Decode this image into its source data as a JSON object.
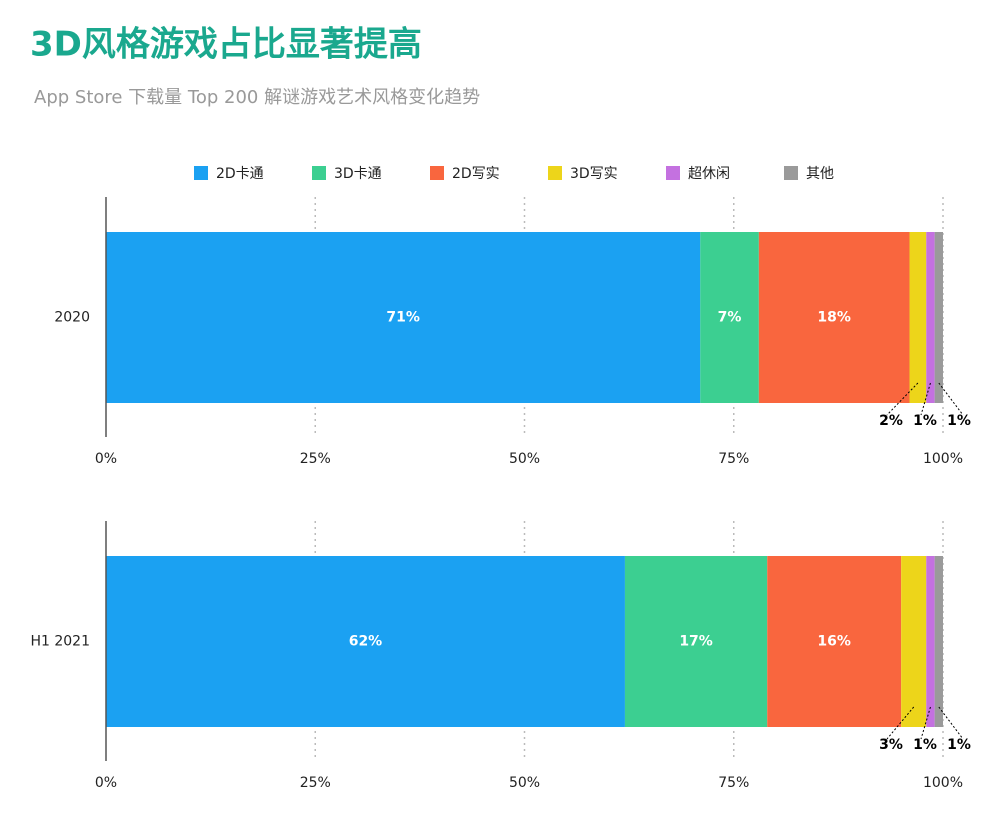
{
  "header": {
    "title": "3D风格游戏占比显著提高",
    "subtitle": "App Store 下载量 Top 200 解谜游戏艺术风格变化趋势"
  },
  "chart_data": {
    "type": "bar",
    "orientation": "horizontal",
    "stacked": true,
    "categories": [
      "2020",
      "H1 2021"
    ],
    "series": [
      {
        "name": "2D卡通",
        "color": "#1ba1f2",
        "values": [
          71,
          62
        ],
        "value_labels": [
          "71%",
          "62%"
        ]
      },
      {
        "name": "3D卡通",
        "color": "#3ccf91",
        "values": [
          7,
          17
        ],
        "value_labels": [
          "7%",
          "17%"
        ]
      },
      {
        "name": "2D写实",
        "color": "#f9663e",
        "values": [
          18,
          16
        ],
        "value_labels": [
          "18%",
          "16%"
        ]
      },
      {
        "name": "3D写实",
        "color": "#edd51a",
        "values": [
          2,
          3
        ],
        "value_labels": [
          "2%",
          "3%"
        ]
      },
      {
        "name": "超休闲",
        "color": "#c471e0",
        "values": [
          1,
          1
        ],
        "value_labels": [
          "1%",
          "1%"
        ]
      },
      {
        "name": "其他",
        "color": "#9a9a9a",
        "values": [
          1,
          1
        ],
        "value_labels": [
          "1%",
          "1%"
        ]
      }
    ],
    "xlim": [
      0,
      100
    ],
    "xticks": [
      {
        "value": 0,
        "label": "0%"
      },
      {
        "value": 25,
        "label": "25%"
      },
      {
        "value": 50,
        "label": "50%"
      },
      {
        "value": 75,
        "label": "75%"
      },
      {
        "value": 100,
        "label": "100%"
      }
    ],
    "grid": true
  }
}
